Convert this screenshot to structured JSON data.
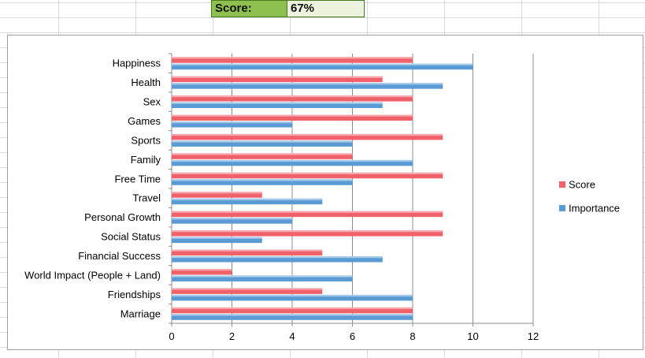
{
  "header": {
    "score_label": "Score:",
    "score_value": "67%"
  },
  "colors": {
    "score": "#f0616a",
    "importance": "#5b9bd5",
    "grid": "#8c8c8c",
    "score_label_fill": "#8dc04f",
    "score_value_fill": "#ebf3de"
  },
  "chart_data": {
    "type": "bar",
    "orientation": "horizontal",
    "categories": [
      "Happiness",
      "Health",
      "Sex",
      "Games",
      "Sports",
      "Family",
      "Free Time",
      "Travel",
      "Personal Growth",
      "Social Status",
      "Financial Success",
      "World Impact (People + Land)",
      "Friendships",
      "Marriage"
    ],
    "series": [
      {
        "name": "Score",
        "values": [
          8,
          7,
          8,
          8,
          9,
          6,
          9,
          3,
          9,
          9,
          5,
          2,
          5,
          8
        ]
      },
      {
        "name": "Importance",
        "values": [
          10,
          9,
          7,
          4,
          6,
          8,
          6,
          5,
          4,
          3,
          7,
          6,
          8,
          8
        ]
      }
    ],
    "xlim": [
      0,
      12
    ],
    "xticks": [
      0,
      2,
      4,
      6,
      8,
      10,
      12
    ],
    "grid": true,
    "legend": "right"
  }
}
